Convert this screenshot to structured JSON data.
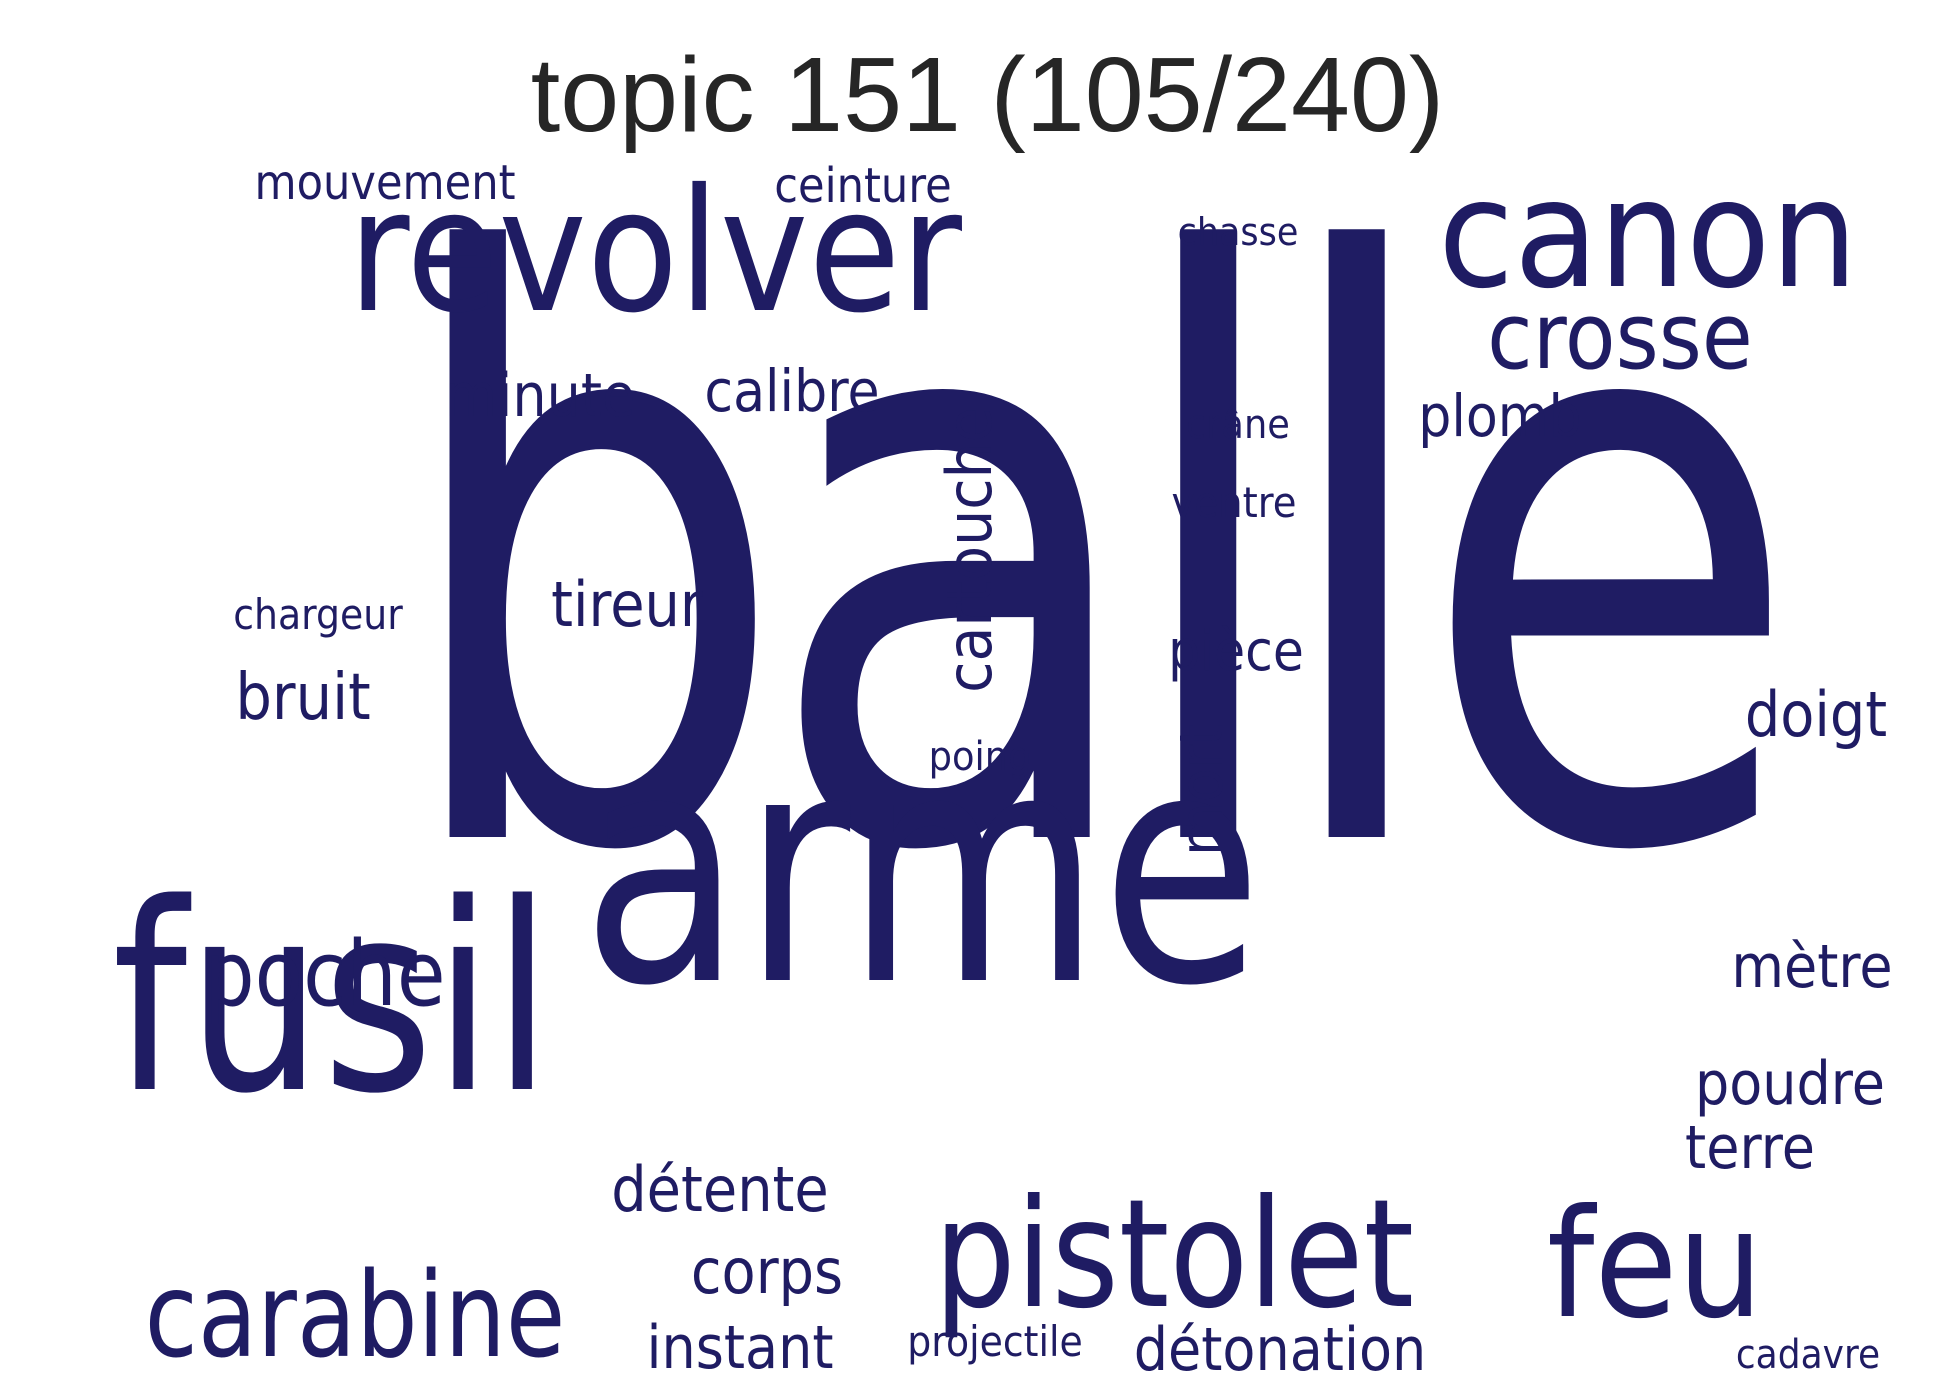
{
  "title": "topic 151 (105/240)",
  "word_color": "#1f1c63",
  "words": {
    "balle": "balle",
    "arme": "arme",
    "fusil": "fusil",
    "revolver": "revolver",
    "canon": "canon",
    "pistolet": "pistolet",
    "feu": "feu",
    "carabine": "carabine",
    "crosse": "crosse",
    "poche": "poche",
    "cartouche": "cartouche",
    "mouvement": "mouvement",
    "ceinture": "ceinture",
    "chasse": "chasse",
    "minute": "minute",
    "calibre": "calibre",
    "plomb": "plomb",
    "crane": "crâne",
    "ventre": "ventre",
    "chargeur": "chargeur",
    "tireur": "tireur",
    "bruit": "bruit",
    "piece": "pièce",
    "doigt": "doigt",
    "poing": "poing",
    "mort": "mort",
    "metre": "mètre",
    "poudre": "poudre",
    "terre": "terre",
    "detente": "détente",
    "corps": "corps",
    "instant": "instant",
    "projectile": "projectile",
    "detonation": "détonation",
    "cadavre": "cadavre"
  }
}
